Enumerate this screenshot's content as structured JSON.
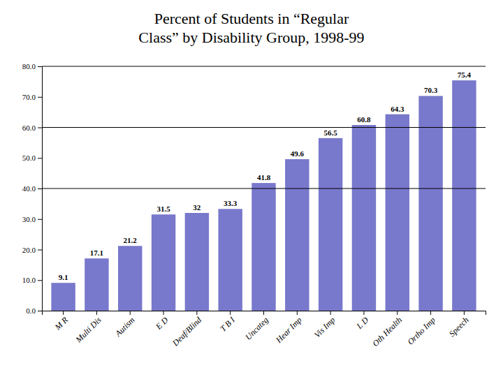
{
  "chart_data": {
    "type": "bar",
    "title": "Percent of Students in “Regular\nClass” by Disability Group, 1998-99",
    "categories": [
      "M R",
      "Multi Dis",
      "Autism",
      "E D",
      "Deaf/Blind",
      "T B I",
      "Uncateg",
      "Hear Imp",
      "Vis Imp",
      "L D",
      "Oth Health",
      "Ortho Imp",
      "Speech"
    ],
    "values": [
      9.1,
      17.1,
      21.2,
      31.5,
      32.0,
      33.3,
      41.8,
      49.6,
      56.5,
      60.8,
      64.3,
      70.3,
      75.4
    ],
    "color": "#7878cc",
    "ylim": [
      0,
      80
    ],
    "yticks": [
      {
        "value": 0,
        "label": "0.0"
      },
      {
        "value": 10,
        "label": "10.0"
      },
      {
        "value": 20,
        "label": "20.0"
      },
      {
        "value": 30,
        "label": "30.0"
      },
      {
        "value": 40,
        "label": "40.0"
      },
      {
        "value": 50,
        "label": "50.0"
      },
      {
        "value": 60,
        "label": "60.0"
      },
      {
        "value": 70,
        "label": "70.0"
      },
      {
        "value": 80,
        "label": "80.0"
      }
    ],
    "hlines": [
      40.0,
      60.0,
      80.0
    ],
    "data_labels": true,
    "grid": false
  }
}
